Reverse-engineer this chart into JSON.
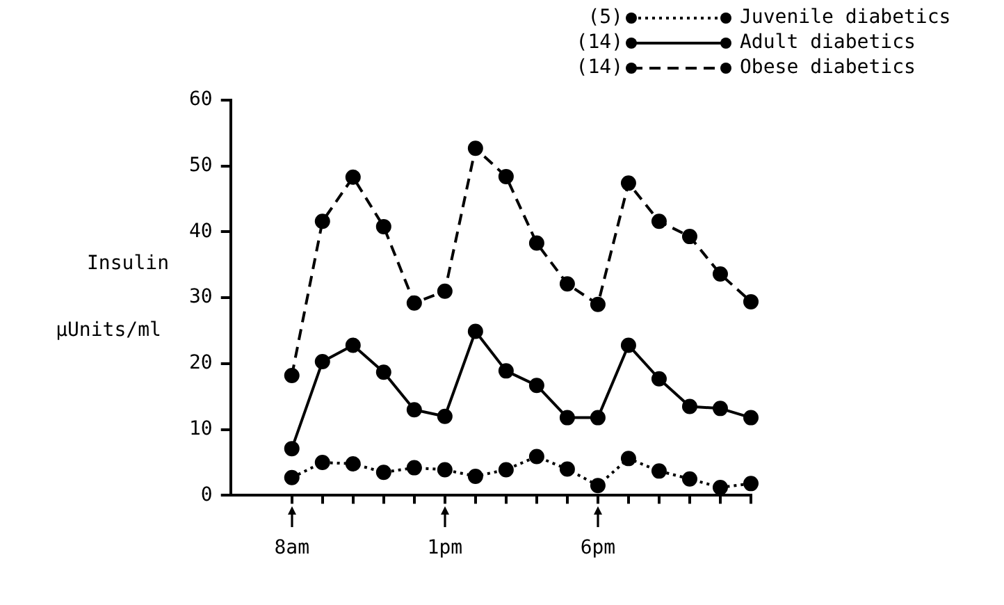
{
  "chart_data": {
    "type": "line",
    "ylabel": "Insulin μUnits/ml",
    "categories": [
      "8am",
      null,
      null,
      null,
      null,
      "1pm",
      null,
      null,
      null,
      null,
      "6pm",
      null,
      null,
      null,
      null,
      null
    ],
    "ylim": [
      0,
      60
    ],
    "yticks": [
      0,
      10,
      20,
      30,
      40,
      50,
      60
    ],
    "grid": false,
    "legend": "top right",
    "marker": "circle",
    "annotations": [
      "(5)",
      "(14)",
      "(14)"
    ],
    "series": [
      {
        "name": "Juvenile diabetics",
        "color": "#000000",
        "line_style": "dotted",
        "values": [
          2.7,
          5.0,
          4.8,
          3.5,
          4.2,
          3.9,
          2.9,
          3.9,
          5.9,
          4.0,
          1.5,
          5.6,
          3.7,
          2.5,
          1.2,
          1.8
        ]
      },
      {
        "name": "Adult diabetics",
        "color": "#000000",
        "line_style": "solid",
        "values": [
          7.1,
          20.3,
          22.8,
          18.7,
          13.0,
          12.0,
          24.9,
          18.9,
          16.7,
          11.8,
          11.8,
          22.8,
          17.7,
          13.5,
          13.2,
          11.8
        ]
      },
      {
        "name": "Obese diabetics",
        "color": "#000000",
        "line_style": "dashed",
        "values": [
          18.2,
          41.6,
          48.3,
          40.8,
          29.2,
          31.0,
          52.7,
          48.4,
          38.3,
          32.1,
          29.0,
          47.4,
          41.6,
          39.3,
          33.6,
          29.4
        ]
      }
    ]
  }
}
